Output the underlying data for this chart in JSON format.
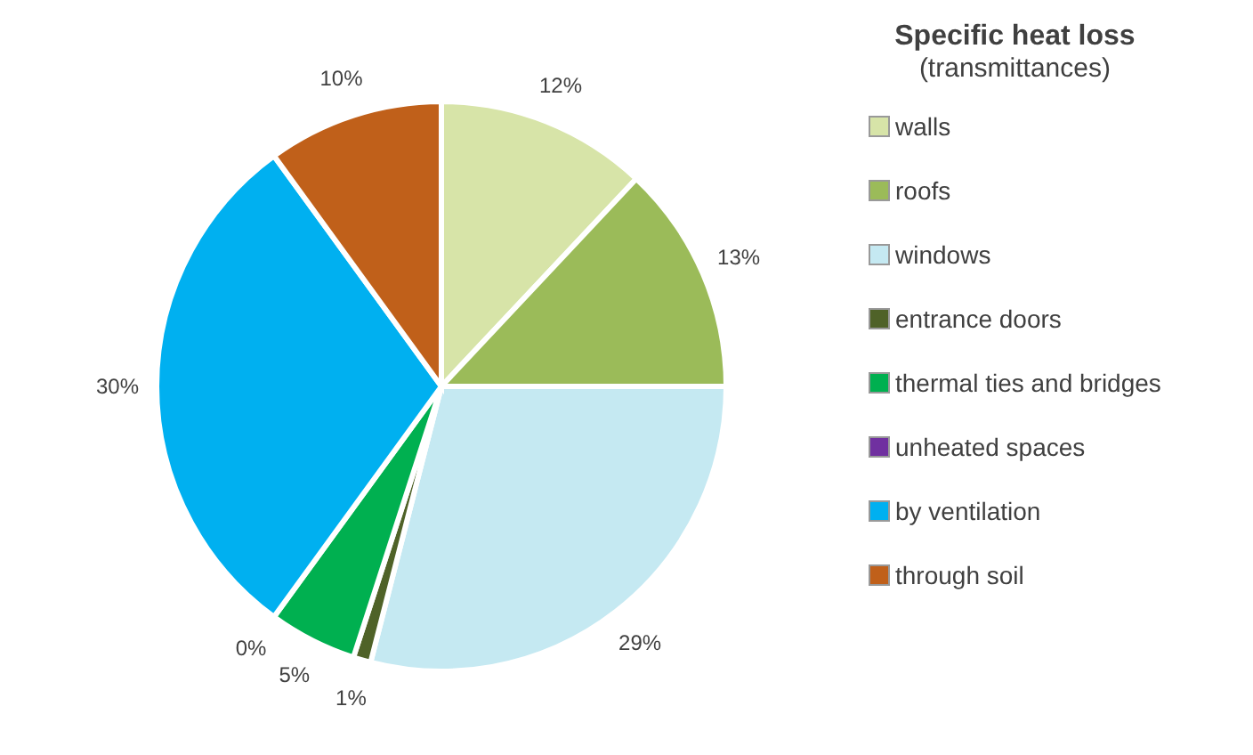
{
  "chart_data": {
    "type": "pie",
    "title": "Specific heat loss",
    "subtitle": "(transmittances)",
    "categories": [
      "walls",
      "roofs",
      "windows",
      "entrance doors",
      "thermal ties and bridges",
      "unheated spaces",
      "by ventilation",
      "through soil"
    ],
    "values": [
      12,
      13,
      29,
      1,
      5,
      0,
      30,
      10
    ],
    "value_labels": [
      "12%",
      "13%",
      "29%",
      "1%",
      "5%",
      "0%",
      "30%",
      "10%"
    ],
    "colors": [
      "#d7e4a8",
      "#9bbb59",
      "#c5e9f2",
      "#4f6228",
      "#00b050",
      "#7030a0",
      "#00b0f0",
      "#c0601a"
    ],
    "legend": "right"
  }
}
